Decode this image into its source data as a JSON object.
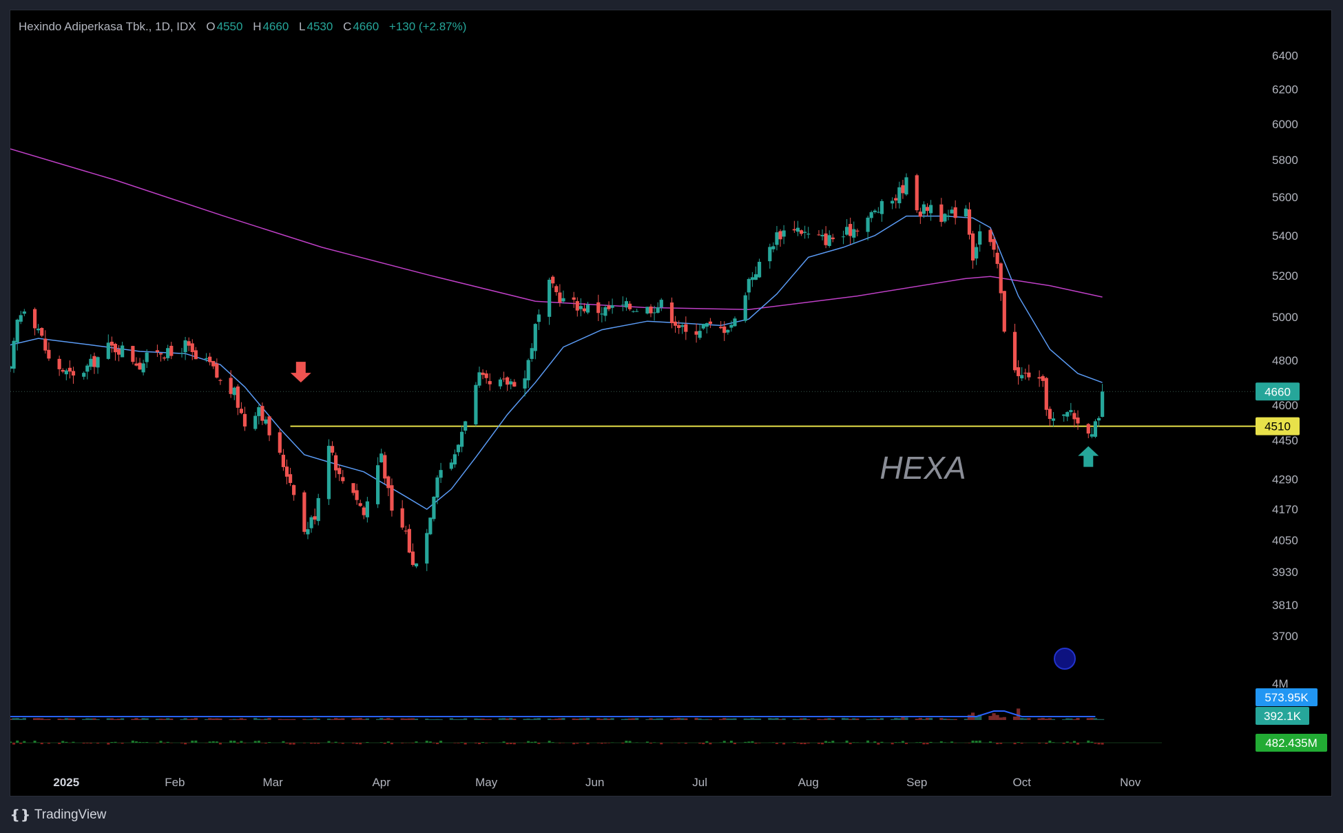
{
  "header": {
    "symbol": "Hexindo Adiperkasa Tbk., 1D, IDX",
    "open_label": "O",
    "open": "4550",
    "high_label": "H",
    "high": "4660",
    "low_label": "L",
    "low": "4530",
    "close_label": "C",
    "close": "4660",
    "change": "+130 (+2.87%)"
  },
  "footer": {
    "brand": "TradingView"
  },
  "watermark": "HEXA",
  "colors": {
    "up": "#26a69a",
    "down": "#ef5350",
    "ma_fast": "#5b9cf6",
    "ma_slow": "#c040c8",
    "support": "#e8e14a",
    "grid": "#000000"
  },
  "chart_data": {
    "type": "candlestick",
    "y_ticks": [
      3700,
      3810,
      3930,
      4050,
      4170,
      4290,
      4450,
      4600,
      4800,
      5000,
      5200,
      5400,
      5600,
      5800,
      6000,
      6200,
      6400
    ],
    "y_tick_labels": [
      "3700",
      "3810",
      "3930",
      "4050",
      "4170",
      "4290",
      "4450",
      "4600",
      "4800",
      "5000",
      "5200",
      "5400",
      "5600",
      "5800",
      "6000",
      "6200",
      "6400"
    ],
    "y_scale": "log",
    "ylim": [
      3600,
      6550
    ],
    "x_labels": [
      {
        "label": "2025",
        "date": "2025-01-01",
        "bold": true
      },
      {
        "label": "Feb",
        "date": "2025-02-01"
      },
      {
        "label": "Mar",
        "date": "2025-03-01"
      },
      {
        "label": "Apr",
        "date": "2025-04-01"
      },
      {
        "label": "May",
        "date": "2025-05-01"
      },
      {
        "label": "Jun",
        "date": "2025-06-01"
      },
      {
        "label": "Jul",
        "date": "2025-07-01"
      },
      {
        "label": "Aug",
        "date": "2025-08-01"
      },
      {
        "label": "Sep",
        "date": "2025-09-01"
      },
      {
        "label": "Oct",
        "date": "2025-10-01"
      },
      {
        "label": "Nov",
        "date": "2025-11-01"
      }
    ],
    "xlim": [
      "2024-12-16",
      "2025-11-10"
    ],
    "price_anchors": [
      [
        "2024-12-16",
        4750
      ],
      [
        "2024-12-18",
        4980
      ],
      [
        "2024-12-20",
        5050
      ],
      [
        "2024-12-24",
        4950
      ],
      [
        "2024-12-27",
        4800
      ],
      [
        "2025-01-03",
        4720
      ],
      [
        "2025-01-08",
        4780
      ],
      [
        "2025-01-13",
        4860
      ],
      [
        "2025-01-17",
        4850
      ],
      [
        "2025-01-22",
        4780
      ],
      [
        "2025-01-27",
        4850
      ],
      [
        "2025-01-31",
        4820
      ],
      [
        "2025-02-04",
        4870
      ],
      [
        "2025-02-07",
        4800
      ],
      [
        "2025-02-11",
        4780
      ],
      [
        "2025-02-14",
        4700
      ],
      [
        "2025-02-18",
        4650
      ],
      [
        "2025-02-21",
        4520
      ],
      [
        "2025-02-25",
        4600
      ],
      [
        "2025-02-28",
        4480
      ],
      [
        "2025-03-04",
        4350
      ],
      [
        "2025-03-07",
        4250
      ],
      [
        "2025-03-10",
        4080
      ],
      [
        "2025-03-13",
        4150
      ],
      [
        "2025-03-17",
        4450
      ],
      [
        "2025-03-20",
        4300
      ],
      [
        "2025-03-24",
        4250
      ],
      [
        "2025-03-27",
        4150
      ],
      [
        "2025-04-01",
        4400
      ],
      [
        "2025-04-04",
        4150
      ],
      [
        "2025-04-08",
        4080
      ],
      [
        "2025-04-10",
        3950
      ],
      [
        "2025-04-14",
        4080
      ],
      [
        "2025-04-17",
        4320
      ],
      [
        "2025-04-22",
        4380
      ],
      [
        "2025-04-25",
        4550
      ],
      [
        "2025-04-29",
        4720
      ],
      [
        "2025-05-02",
        4680
      ],
      [
        "2025-05-07",
        4700
      ],
      [
        "2025-05-12",
        4720
      ],
      [
        "2025-05-15",
        4950
      ],
      [
        "2025-05-19",
        5150
      ],
      [
        "2025-05-23",
        5080
      ],
      [
        "2025-05-28",
        5050
      ],
      [
        "2025-06-03",
        5030
      ],
      [
        "2025-06-09",
        5050
      ],
      [
        "2025-06-16",
        5040
      ],
      [
        "2025-06-20",
        5060
      ],
      [
        "2025-06-24",
        4980
      ],
      [
        "2025-06-27",
        4920
      ],
      [
        "2025-07-02",
        4960
      ],
      [
        "2025-07-07",
        4940
      ],
      [
        "2025-07-11",
        4980
      ],
      [
        "2025-07-15",
        5180
      ],
      [
        "2025-07-18",
        5250
      ],
      [
        "2025-07-23",
        5400
      ],
      [
        "2025-07-28",
        5450
      ],
      [
        "2025-08-01",
        5400
      ],
      [
        "2025-08-06",
        5380
      ],
      [
        "2025-08-11",
        5400
      ],
      [
        "2025-08-15",
        5450
      ],
      [
        "2025-08-20",
        5520
      ],
      [
        "2025-08-26",
        5600
      ],
      [
        "2025-08-29",
        5680
      ],
      [
        "2025-09-02",
        5520
      ],
      [
        "2025-09-05",
        5560
      ],
      [
        "2025-09-09",
        5480
      ],
      [
        "2025-09-12",
        5520
      ],
      [
        "2025-09-15",
        5550
      ],
      [
        "2025-09-17",
        5300
      ],
      [
        "2025-09-19",
        5420
      ],
      [
        "2025-09-22",
        5350
      ],
      [
        "2025-09-24",
        5250
      ],
      [
        "2025-09-26",
        4950
      ],
      [
        "2025-09-30",
        4720
      ],
      [
        "2025-10-03",
        4740
      ],
      [
        "2025-10-07",
        4680
      ],
      [
        "2025-10-09",
        4530
      ],
      [
        "2025-10-13",
        4540
      ],
      [
        "2025-10-15",
        4580
      ],
      [
        "2025-10-17",
        4520
      ],
      [
        "2025-10-21",
        4500
      ],
      [
        "2025-10-23",
        4520
      ],
      [
        "2025-10-24",
        4660
      ]
    ],
    "ma_fast": [
      [
        "2024-12-16",
        4870
      ],
      [
        "2024-12-24",
        4900
      ],
      [
        "2025-01-08",
        4870
      ],
      [
        "2025-01-22",
        4840
      ],
      [
        "2025-02-04",
        4830
      ],
      [
        "2025-02-14",
        4780
      ],
      [
        "2025-02-21",
        4680
      ],
      [
        "2025-03-03",
        4500
      ],
      [
        "2025-03-10",
        4390
      ],
      [
        "2025-03-17",
        4360
      ],
      [
        "2025-03-27",
        4320
      ],
      [
        "2025-04-08",
        4220
      ],
      [
        "2025-04-14",
        4170
      ],
      [
        "2025-04-21",
        4250
      ],
      [
        "2025-04-28",
        4380
      ],
      [
        "2025-05-07",
        4560
      ],
      [
        "2025-05-15",
        4700
      ],
      [
        "2025-05-23",
        4860
      ],
      [
        "2025-06-03",
        4940
      ],
      [
        "2025-06-16",
        4980
      ],
      [
        "2025-06-27",
        4970
      ],
      [
        "2025-07-07",
        4960
      ],
      [
        "2025-07-15",
        4990
      ],
      [
        "2025-07-23",
        5110
      ],
      [
        "2025-08-01",
        5290
      ],
      [
        "2025-08-11",
        5340
      ],
      [
        "2025-08-20",
        5400
      ],
      [
        "2025-08-29",
        5500
      ],
      [
        "2025-09-09",
        5500
      ],
      [
        "2025-09-17",
        5490
      ],
      [
        "2025-09-22",
        5440
      ],
      [
        "2025-09-30",
        5100
      ],
      [
        "2025-10-09",
        4850
      ],
      [
        "2025-10-17",
        4740
      ],
      [
        "2025-10-24",
        4700
      ]
    ],
    "ma_slow": [
      [
        "2024-12-16",
        5860
      ],
      [
        "2025-01-15",
        5690
      ],
      [
        "2025-02-15",
        5500
      ],
      [
        "2025-03-15",
        5340
      ],
      [
        "2025-04-15",
        5200
      ],
      [
        "2025-05-15",
        5075
      ],
      [
        "2025-06-15",
        5045
      ],
      [
        "2025-07-15",
        5035
      ],
      [
        "2025-08-15",
        5100
      ],
      [
        "2025-09-15",
        5185
      ],
      [
        "2025-09-22",
        5195
      ],
      [
        "2025-10-09",
        5150
      ],
      [
        "2025-10-24",
        5095
      ]
    ],
    "support_level": 4510,
    "support_start": "2025-03-06",
    "last_price": 4660,
    "price_badges": [
      {
        "label": "4660",
        "value": 4660,
        "color": "#26a69a"
      },
      {
        "label": "4510",
        "value": 4510,
        "color": "#e8e14a"
      }
    ],
    "arrows": [
      {
        "type": "down",
        "date": "2025-03-09",
        "value": 4700,
        "color": "#ef5350"
      },
      {
        "type": "up",
        "date": "2025-10-20",
        "value": 4340,
        "color": "#26a69a"
      }
    ],
    "volume": {
      "axis_label": "4M",
      "badges": [
        {
          "label": "573.95K",
          "color": "#2196f3"
        },
        {
          "label": "392.1K",
          "color": "#26a69a"
        }
      ]
    },
    "indicator": {
      "badges": [
        {
          "label": "482.435M",
          "color": "#22ab34"
        }
      ]
    }
  }
}
